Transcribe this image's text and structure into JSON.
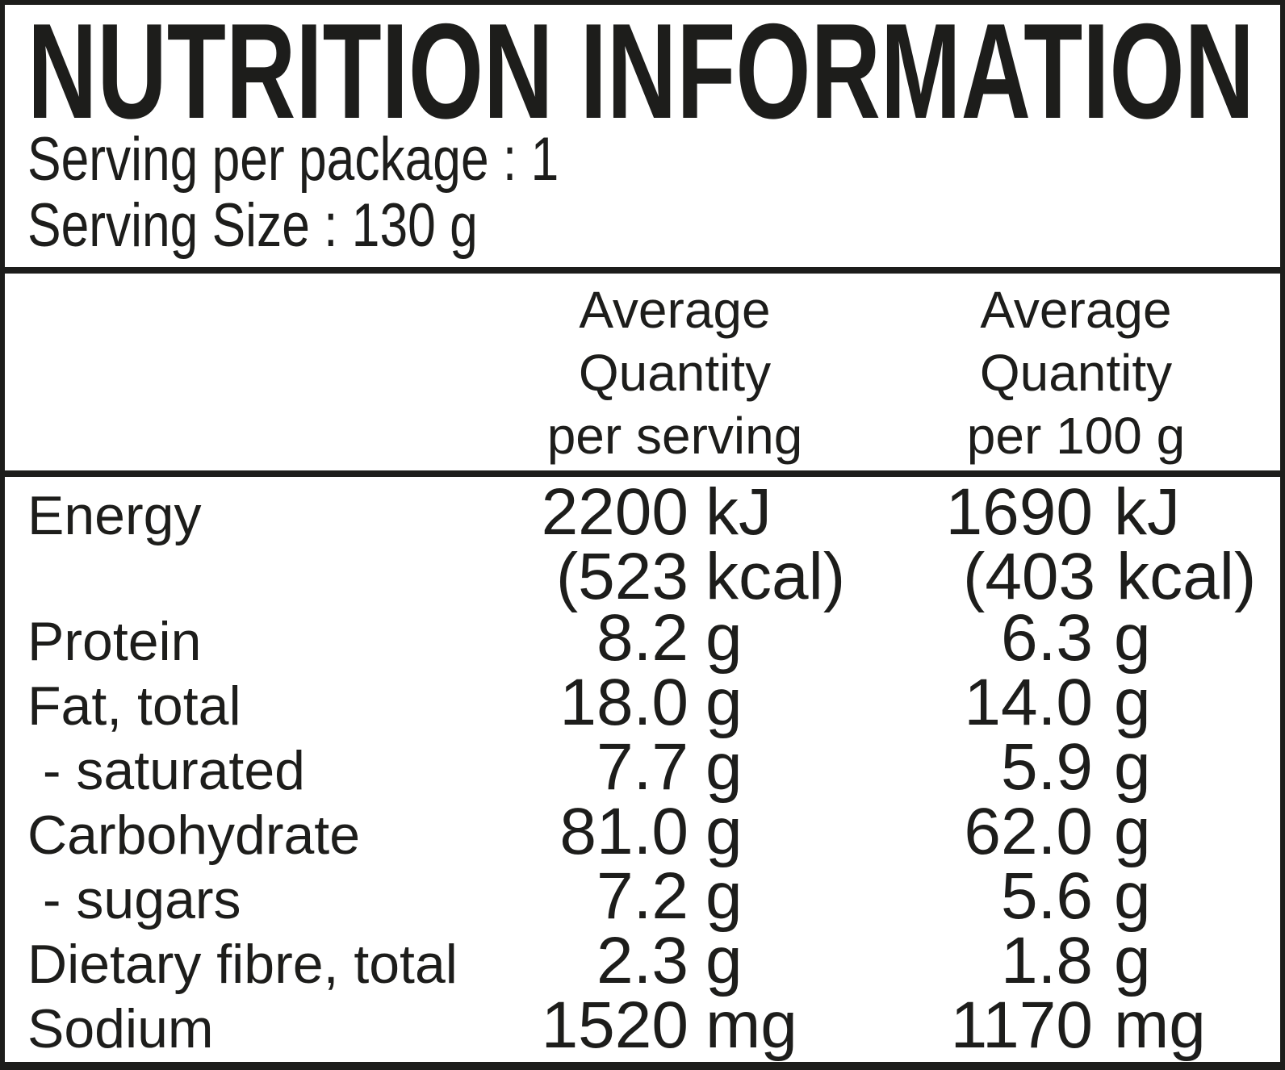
{
  "panel": {
    "title": "NUTRITION INFORMATION",
    "serving_per_package": "Serving per package : 1",
    "serving_size": "Serving Size : 130 g"
  },
  "table": {
    "header": {
      "per_serving": [
        "Average",
        "Quantity",
        "per serving"
      ],
      "per_100g": [
        "Average",
        "Quantity",
        "per 100 g"
      ]
    },
    "rows": [
      {
        "label": "Energy",
        "serving": "2200",
        "serving_unit": "kJ",
        "per100": "1690",
        "per100_unit": "kJ"
      },
      {
        "label": "",
        "serving": "(523",
        "serving_unit": "kcal)",
        "per100": "(403",
        "per100_unit": "kcal)"
      },
      {
        "label": "Protein",
        "serving": "8.2",
        "serving_unit": "g",
        "per100": "6.3",
        "per100_unit": "g"
      },
      {
        "label": "Fat, total",
        "serving": "18.0",
        "serving_unit": "g",
        "per100": "14.0",
        "per100_unit": "g"
      },
      {
        "label": " - saturated",
        "serving": "7.7",
        "serving_unit": "g",
        "per100": "5.9",
        "per100_unit": "g"
      },
      {
        "label": "Carbohydrate",
        "serving": "81.0",
        "serving_unit": "g",
        "per100": "62.0",
        "per100_unit": "g"
      },
      {
        "label": " - sugars",
        "serving": "7.2",
        "serving_unit": "g",
        "per100": "5.6",
        "per100_unit": "g"
      },
      {
        "label": "Dietary fibre, total",
        "serving": "2.3",
        "serving_unit": "g",
        "per100": "1.8",
        "per100_unit": "g"
      },
      {
        "label": "Sodium",
        "serving": "1520",
        "serving_unit": "mg",
        "per100": "1170",
        "per100_unit": "mg"
      }
    ]
  },
  "colors": {
    "ink": "#1d1d1b",
    "background": "#ffffff"
  }
}
